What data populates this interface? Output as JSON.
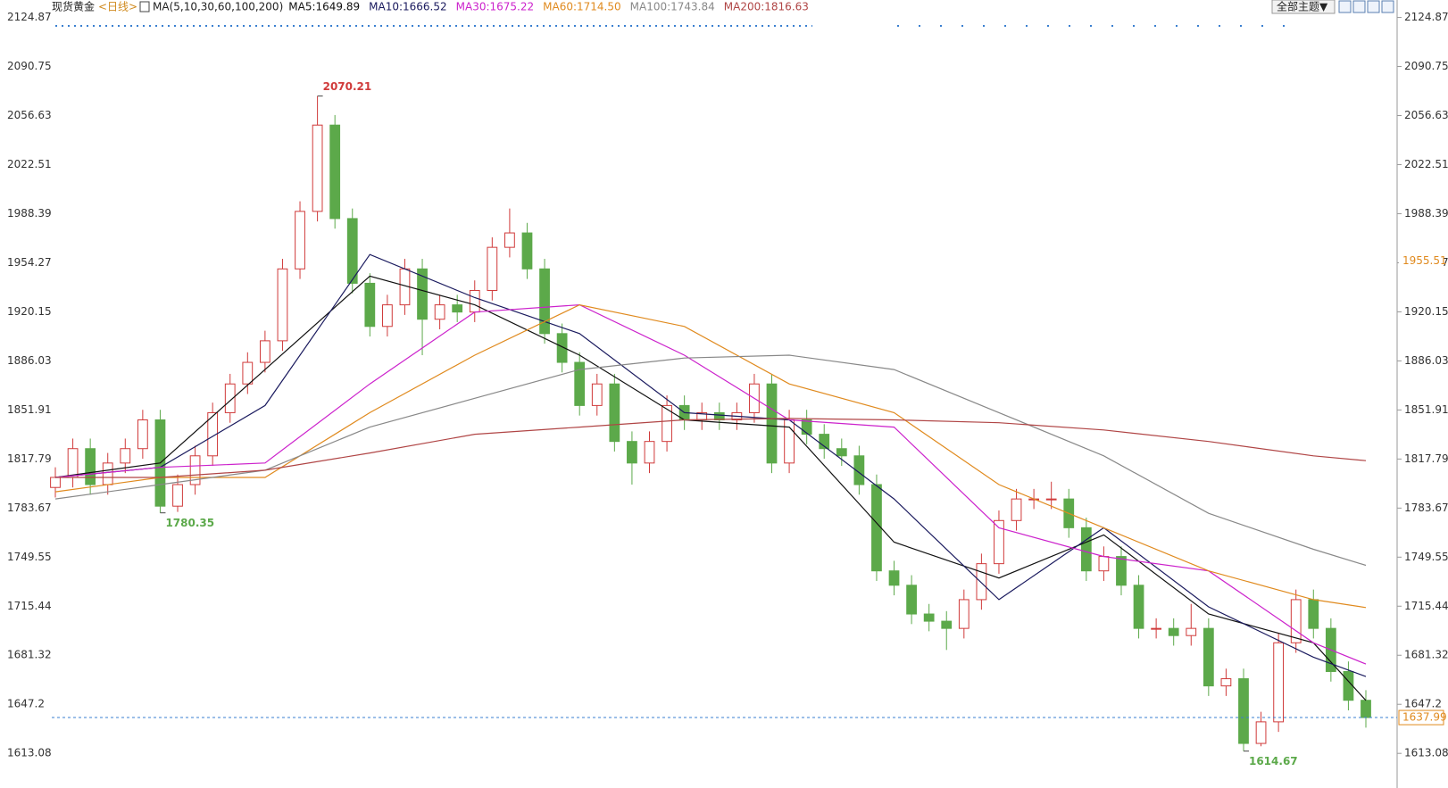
{
  "chart_data": {
    "type": "candlestick",
    "title": "现货黄金",
    "period": "<日线>",
    "ma_label": "MA(5,10,30,60,100,200)",
    "ylim": [
      1589,
      2137
    ],
    "yticks": [
      1613.08,
      1647.2,
      1681.32,
      1715.44,
      1749.55,
      1783.67,
      1817.79,
      1851.91,
      1886.03,
      1920.15,
      1954.27,
      1988.39,
      2022.51,
      2056.63,
      2090.75,
      2124.87
    ],
    "up_color": "#d03a3a",
    "down_color": "#5ca94a",
    "candles": {
      "open": [
        1798,
        1805,
        1825,
        1800,
        1815,
        1825,
        1845,
        1785,
        1800,
        1820,
        1850,
        1870,
        1885,
        1900,
        1950,
        1990,
        2050,
        1985,
        1940,
        1910,
        1925,
        1950,
        1915,
        1925,
        1920,
        1935,
        1965,
        1975,
        1950,
        1905,
        1885,
        1855,
        1870,
        1830,
        1815,
        1830,
        1855,
        1845,
        1850,
        1845,
        1850,
        1870,
        1815,
        1845,
        1835,
        1825,
        1820,
        1800,
        1740,
        1730,
        1710,
        1705,
        1700,
        1720,
        1745,
        1775,
        1790,
        1790,
        1790,
        1770,
        1740,
        1750,
        1730,
        1700,
        1700,
        1695,
        1700,
        1660,
        1665,
        1620,
        1635,
        1690,
        1720,
        1700,
        1670,
        1650
      ],
      "high": [
        1812,
        1832,
        1832,
        1822,
        1832,
        1852,
        1852,
        1807,
        1827,
        1857,
        1877,
        1892,
        1907,
        1957,
        1997,
        2070.21,
        2057,
        1992,
        1947,
        1932,
        1957,
        1957,
        1932,
        1932,
        1942,
        1972,
        1992,
        1982,
        1957,
        1912,
        1892,
        1877,
        1877,
        1837,
        1837,
        1862,
        1862,
        1857,
        1857,
        1857,
        1877,
        1877,
        1852,
        1852,
        1842,
        1832,
        1827,
        1807,
        1747,
        1737,
        1717,
        1712,
        1727,
        1752,
        1782,
        1797,
        1797,
        1802,
        1797,
        1777,
        1757,
        1757,
        1737,
        1707,
        1707,
        1717,
        1707,
        1672,
        1672,
        1642,
        1697,
        1727,
        1727,
        1707,
        1677,
        1657
      ],
      "low": [
        1791,
        1798,
        1793,
        1793,
        1808,
        1818,
        1780.35,
        1781,
        1793,
        1813,
        1843,
        1863,
        1878,
        1893,
        1943,
        1983,
        1978,
        1933,
        1903,
        1903,
        1918,
        1890,
        1908,
        1913,
        1913,
        1928,
        1958,
        1943,
        1898,
        1878,
        1848,
        1848,
        1823,
        1800,
        1808,
        1823,
        1838,
        1838,
        1838,
        1838,
        1843,
        1808,
        1808,
        1828,
        1818,
        1813,
        1793,
        1733,
        1723,
        1703,
        1698,
        1685,
        1693,
        1713,
        1738,
        1768,
        1783,
        1783,
        1763,
        1733,
        1733,
        1723,
        1693,
        1693,
        1688,
        1688,
        1653,
        1653,
        1614.67,
        1618,
        1628,
        1683,
        1693,
        1663,
        1643,
        1631
      ],
      "close": [
        1805,
        1825,
        1800,
        1815,
        1825,
        1845,
        1785,
        1800,
        1820,
        1850,
        1870,
        1885,
        1900,
        1950,
        1990,
        2050,
        1985,
        1940,
        1910,
        1925,
        1950,
        1915,
        1925,
        1920,
        1935,
        1965,
        1975,
        1950,
        1905,
        1885,
        1855,
        1870,
        1830,
        1815,
        1830,
        1855,
        1845,
        1850,
        1845,
        1850,
        1870,
        1815,
        1845,
        1835,
        1825,
        1820,
        1800,
        1740,
        1730,
        1710,
        1705,
        1700,
        1720,
        1745,
        1775,
        1790,
        1790,
        1790,
        1770,
        1740,
        1750,
        1730,
        1700,
        1700,
        1695,
        1700,
        1660,
        1665,
        1620,
        1635,
        1690,
        1720,
        1700,
        1670,
        1650,
        1637.99
      ]
    },
    "ma_x": [
      0,
      6,
      12,
      18,
      24,
      30,
      36,
      42,
      48,
      54,
      60,
      66,
      72,
      75
    ],
    "series": [
      {
        "name": "MA5:1649.89",
        "color": "#111111",
        "values": [
          1805,
          1815,
          1880,
          1945,
          1925,
          1890,
          1845,
          1840,
          1760,
          1735,
          1765,
          1710,
          1690,
          1649.89
        ]
      },
      {
        "name": "MA10:1666.52",
        "color": "#1a1a5e",
        "values": [
          1805,
          1812,
          1855,
          1960,
          1930,
          1905,
          1850,
          1845,
          1790,
          1720,
          1770,
          1715,
          1680,
          1666.52
        ]
      },
      {
        "name": "MA30:1675.22",
        "color": "#cc22cc",
        "values": [
          1805,
          1812,
          1815,
          1870,
          1920,
          1925,
          1890,
          1845,
          1840,
          1770,
          1750,
          1740,
          1690,
          1675.22
        ]
      },
      {
        "name": "MA60:1714.50",
        "color": "#e08a1e",
        "values": [
          1795,
          1805,
          1805,
          1850,
          1890,
          1925,
          1910,
          1870,
          1850,
          1800,
          1770,
          1740,
          1720,
          1714.5
        ]
      },
      {
        "name": "MA100:1743.84",
        "color": "#888888",
        "values": [
          1790,
          1800,
          1810,
          1840,
          1860,
          1880,
          1888,
          1890,
          1880,
          1850,
          1820,
          1780,
          1755,
          1743.84
        ]
      },
      {
        "name": "MA200:1816.63",
        "color": "#b04545",
        "values": [
          1805,
          1805,
          1810,
          1822,
          1835,
          1840,
          1845,
          1846,
          1845,
          1843,
          1838,
          1830,
          1820,
          1816.63
        ]
      }
    ],
    "marker_price": 1955.51,
    "last_price": 1637.99
  },
  "toolbar": {
    "theme_button": "全部主题▼"
  }
}
